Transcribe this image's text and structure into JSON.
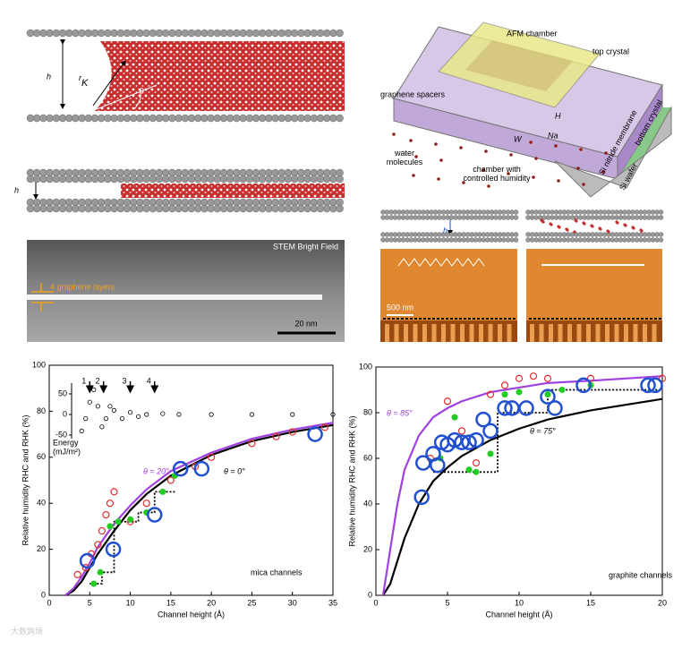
{
  "figure": {
    "a": {
      "h": "h",
      "rk": "r",
      "rk_sub": "K",
      "theta": "θ",
      "h2": "h"
    },
    "stem": {
      "title": "STEM Bright Field",
      "layers": "4 graphene layers",
      "scale": "20 nm"
    },
    "device": {
      "afm": "AFM chamber",
      "top": "top crystal",
      "spacers": "graphene spacers",
      "water": [
        "water",
        "molecules"
      ],
      "chamber": [
        "chamber with",
        "controlled humidity"
      ],
      "bottom": "bottom crystal",
      "nitride": "Si nitride membrane",
      "wafer": "Si wafer",
      "H": "H",
      "W": "W",
      "Na": "Na"
    },
    "afm": {
      "h": "h",
      "scale": "500 nm"
    },
    "watermark": "大数跨境"
  },
  "chart_data": [
    {
      "type": "scatter-line",
      "xlabel": "Channel height (Å)",
      "ylabel": "Relative humidity RHC and RHK (%)",
      "xlim": [
        0,
        35
      ],
      "xticks": [
        0,
        5,
        10,
        15,
        20,
        25,
        30,
        35
      ],
      "ylim": [
        0,
        100
      ],
      "yticks": [
        0,
        20,
        40,
        60,
        80,
        100
      ],
      "annotations": [
        "θ = 20°",
        "θ = 0°",
        "mica channels"
      ],
      "series": [
        {
          "style": "dotted",
          "color": "#000000",
          "x": [
            5,
            6.5,
            6.5,
            8,
            8,
            11,
            11,
            13,
            13,
            15.5
          ],
          "values": [
            5,
            5,
            10,
            10,
            32,
            32,
            36,
            36,
            45,
            45
          ]
        },
        {
          "style": "line",
          "color": "#000000",
          "x": [
            2,
            3,
            4,
            5,
            6,
            8,
            10,
            12,
            15,
            20,
            25,
            30,
            35
          ],
          "values": [
            0,
            2,
            6,
            12,
            18,
            28,
            37,
            44,
            52,
            61,
            67,
            71,
            74
          ]
        },
        {
          "style": "line",
          "color": "#a040e0",
          "x": [
            2,
            3,
            4,
            5,
            6,
            8,
            10,
            12,
            15,
            20,
            25,
            30,
            35
          ],
          "values": [
            0,
            3,
            8,
            14,
            21,
            31,
            39,
            46,
            54,
            62,
            68,
            72,
            75
          ]
        },
        {
          "style": "open",
          "color": "#e03030",
          "x": [
            3.5,
            4.5,
            5.2,
            6,
            6.5,
            7,
            7.5,
            8,
            10,
            12,
            15,
            18,
            20,
            25,
            28,
            30,
            34
          ],
          "values": [
            9,
            12,
            18,
            22,
            28,
            35,
            40,
            45,
            32,
            40,
            50,
            56,
            60,
            66,
            69,
            71,
            73
          ]
        },
        {
          "style": "dot",
          "color": "#22cc22",
          "x": [
            5.5,
            6.3,
            7.5,
            8.5,
            10,
            12,
            14,
            15.5
          ],
          "values": [
            5,
            10,
            30,
            32,
            33,
            36,
            45,
            52
          ]
        },
        {
          "style": "big",
          "color": "#2050d0",
          "x": [
            4.7,
            7.9,
            13,
            16.2,
            18.8,
            32.8
          ],
          "values": [
            15,
            20,
            35,
            55,
            55,
            70
          ]
        }
      ],
      "inset": {
        "ylabel": [
          "Energy",
          "(mJ/m²)"
        ],
        "ylim": [
          -50,
          50
        ],
        "yticks": [
          50,
          0,
          -50
        ],
        "x": [
          4,
          4.5,
          5,
          5.5,
          6,
          6.5,
          7,
          7.5,
          8,
          9,
          10,
          11,
          12,
          14,
          16,
          20,
          25,
          30,
          35
        ],
        "values": [
          -40,
          -10,
          30,
          60,
          20,
          -30,
          -10,
          20,
          10,
          -10,
          5,
          -5,
          0,
          2,
          0,
          0,
          0,
          0,
          0
        ],
        "arrows": {
          "x": [
            5,
            6.7,
            10,
            13
          ],
          "labels": [
            "1",
            "2",
            "3",
            "4"
          ]
        }
      }
    },
    {
      "type": "scatter-line",
      "xlabel": "Channel height (Å)",
      "ylabel": "Relative humidity RHC and RHK (%)",
      "xlim": [
        0,
        20
      ],
      "xticks": [
        0,
        5,
        10,
        15,
        20
      ],
      "ylim": [
        0,
        100
      ],
      "yticks": [
        0,
        20,
        40,
        60,
        80,
        100
      ],
      "annotations": [
        "θ = 85°",
        "θ = 75°",
        "graphite channels"
      ],
      "series": [
        {
          "style": "dotted",
          "color": "#000000",
          "x": [
            4,
            8.5,
            8.5,
            12,
            12,
            20
          ],
          "values": [
            54,
            54,
            80,
            80,
            90,
            90
          ]
        },
        {
          "style": "line",
          "color": "#000000",
          "x": [
            0.5,
            1,
            1.5,
            2,
            3,
            4,
            5,
            6,
            8,
            10,
            12,
            15,
            20
          ],
          "values": [
            0,
            5,
            15,
            25,
            40,
            50,
            56,
            61,
            68,
            73,
            77,
            81,
            86
          ]
        },
        {
          "style": "line",
          "color": "#a040e0",
          "x": [
            0.5,
            1,
            1.5,
            2,
            3,
            4,
            5,
            6,
            8,
            10,
            12,
            15,
            20
          ],
          "values": [
            0,
            20,
            40,
            55,
            70,
            78,
            82,
            85,
            89,
            91,
            93,
            94,
            96
          ]
        },
        {
          "style": "open",
          "color": "#e03030",
          "x": [
            3.8,
            5,
            6,
            7,
            8,
            9,
            10,
            11,
            12,
            15,
            20
          ],
          "values": [
            60,
            85,
            72,
            58,
            88,
            92,
            95,
            96,
            95,
            95,
            95
          ]
        },
        {
          "style": "dot",
          "color": "#22cc22",
          "x": [
            4.5,
            5.5,
            6.5,
            7,
            8,
            9,
            10,
            12,
            13,
            15
          ],
          "values": [
            60,
            78,
            55,
            54,
            62,
            88,
            89,
            88,
            90,
            92
          ]
        },
        {
          "style": "big",
          "color": "#2050d0",
          "x": [
            3.2,
            3.3,
            4,
            4.3,
            4.6,
            5,
            5.5,
            6,
            6.5,
            7,
            7.5,
            8,
            9,
            9.5,
            10.5,
            12,
            12.5,
            14.5,
            19,
            19.5
          ],
          "values": [
            43,
            58,
            62,
            57,
            67,
            66,
            68,
            67,
            67,
            68,
            77,
            72,
            82,
            82,
            82,
            87,
            82,
            92,
            92,
            92
          ]
        }
      ]
    }
  ]
}
